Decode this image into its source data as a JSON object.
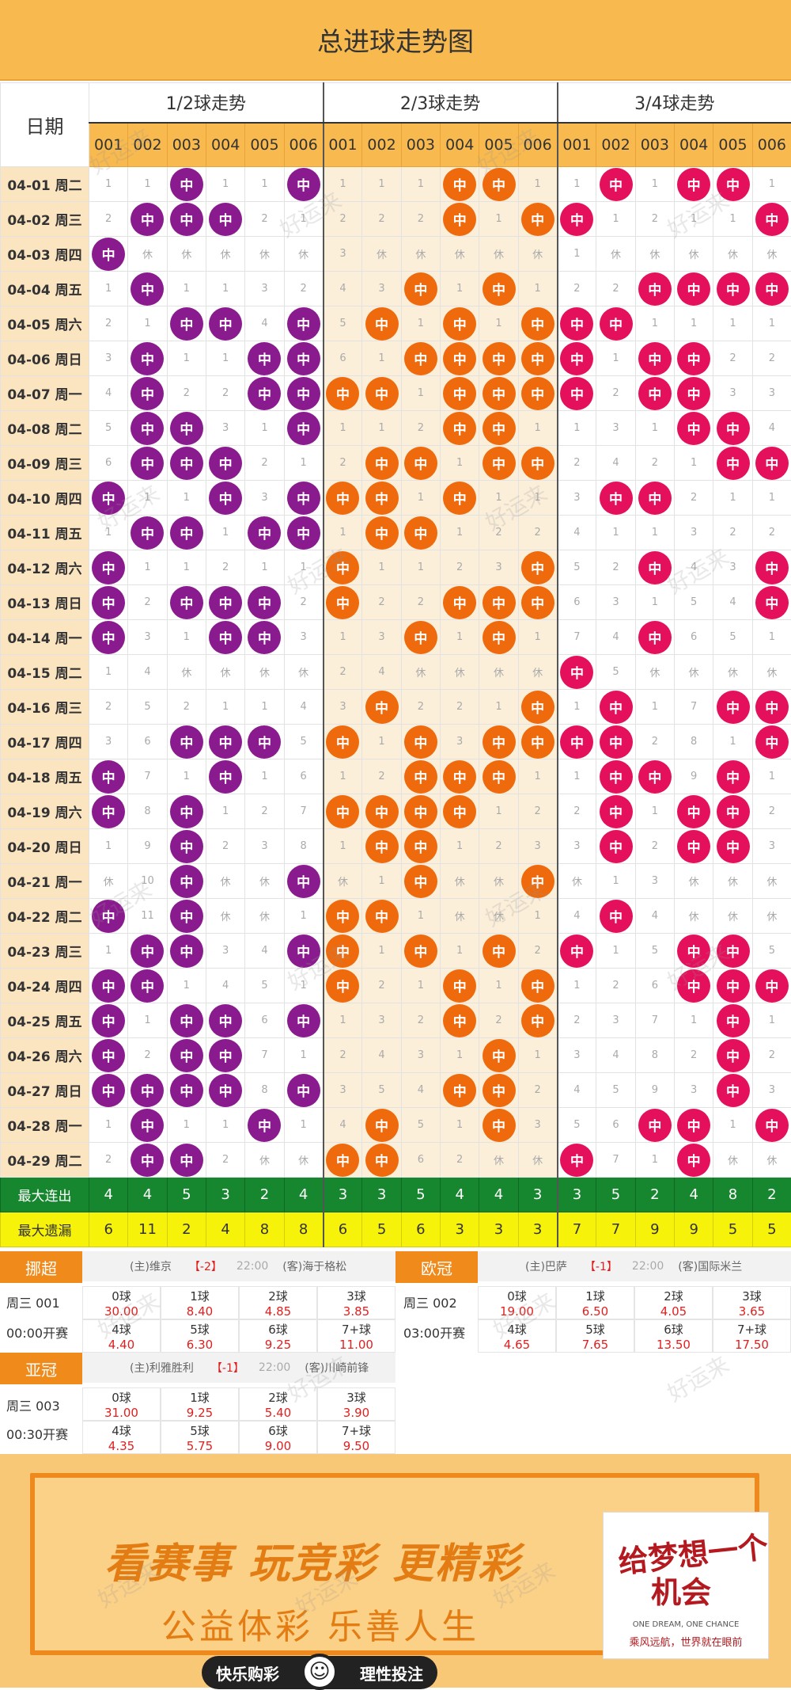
{
  "title": "总进球走势图",
  "grid": {
    "date_header": "日期",
    "groups": [
      "1/2球走势",
      "2/3球走势",
      "3/4球走势"
    ],
    "columns": [
      "001",
      "002",
      "003",
      "004",
      "005",
      "006",
      "001",
      "002",
      "003",
      "004",
      "005",
      "006",
      "001",
      "002",
      "003",
      "004",
      "005",
      "006"
    ],
    "rows": [
      {
        "date": "04-01 周二",
        "cells": [
          "1",
          "1",
          "中",
          "1",
          "1",
          "中",
          "1",
          "1",
          "1",
          "中",
          "中",
          "1",
          "1",
          "中",
          "1",
          "中",
          "中",
          "1"
        ]
      },
      {
        "date": "04-02 周三",
        "cells": [
          "2",
          "中",
          "中",
          "中",
          "2",
          "1",
          "2",
          "2",
          "2",
          "中",
          "1",
          "中",
          "中",
          "1",
          "2",
          "1",
          "1",
          "中"
        ]
      },
      {
        "date": "04-03 周四",
        "cells": [
          "中",
          "休",
          "休",
          "休",
          "休",
          "休",
          "3",
          "休",
          "休",
          "休",
          "休",
          "休",
          "1",
          "休",
          "休",
          "休",
          "休",
          "休"
        ]
      },
      {
        "date": "04-04 周五",
        "cells": [
          "1",
          "中",
          "1",
          "1",
          "3",
          "2",
          "4",
          "3",
          "中",
          "1",
          "中",
          "1",
          "2",
          "2",
          "中",
          "中",
          "中",
          "中"
        ]
      },
      {
        "date": "04-05 周六",
        "cells": [
          "2",
          "1",
          "中",
          "中",
          "4",
          "中",
          "5",
          "中",
          "1",
          "中",
          "1",
          "中",
          "中",
          "中",
          "1",
          "1",
          "1",
          "1"
        ]
      },
      {
        "date": "04-06 周日",
        "cells": [
          "3",
          "中",
          "1",
          "1",
          "中",
          "中",
          "6",
          "1",
          "中",
          "中",
          "中",
          "中",
          "中",
          "1",
          "中",
          "中",
          "2",
          "2"
        ]
      },
      {
        "date": "04-07 周一",
        "cells": [
          "4",
          "中",
          "2",
          "2",
          "中",
          "中",
          "中",
          "中",
          "1",
          "中",
          "中",
          "中",
          "中",
          "2",
          "中",
          "中",
          "3",
          "3"
        ]
      },
      {
        "date": "04-08 周二",
        "cells": [
          "5",
          "中",
          "中",
          "3",
          "1",
          "中",
          "1",
          "1",
          "2",
          "中",
          "中",
          "1",
          "1",
          "3",
          "1",
          "中",
          "中",
          "4"
        ]
      },
      {
        "date": "04-09 周三",
        "cells": [
          "6",
          "中",
          "中",
          "中",
          "2",
          "1",
          "2",
          "中",
          "中",
          "1",
          "中",
          "中",
          "2",
          "4",
          "2",
          "1",
          "中",
          "中"
        ]
      },
      {
        "date": "04-10 周四",
        "cells": [
          "中",
          "1",
          "1",
          "中",
          "3",
          "中",
          "中",
          "中",
          "1",
          "中",
          "1",
          "1",
          "3",
          "中",
          "中",
          "2",
          "1",
          "1"
        ]
      },
      {
        "date": "04-11 周五",
        "cells": [
          "1",
          "中",
          "中",
          "1",
          "中",
          "中",
          "1",
          "中",
          "中",
          "1",
          "2",
          "2",
          "4",
          "1",
          "1",
          "3",
          "2",
          "2"
        ]
      },
      {
        "date": "04-12 周六",
        "cells": [
          "中",
          "1",
          "1",
          "2",
          "1",
          "1",
          "中",
          "1",
          "1",
          "2",
          "3",
          "中",
          "5",
          "2",
          "中",
          "4",
          "3",
          "中"
        ]
      },
      {
        "date": "04-13 周日",
        "cells": [
          "中",
          "2",
          "中",
          "中",
          "中",
          "2",
          "中",
          "2",
          "2",
          "中",
          "中",
          "中",
          "6",
          "3",
          "1",
          "5",
          "4",
          "中"
        ]
      },
      {
        "date": "04-14 周一",
        "cells": [
          "中",
          "3",
          "1",
          "中",
          "中",
          "3",
          "1",
          "3",
          "中",
          "1",
          "中",
          "1",
          "7",
          "4",
          "中",
          "6",
          "5",
          "1"
        ]
      },
      {
        "date": "04-15 周二",
        "cells": [
          "1",
          "4",
          "休",
          "休",
          "休",
          "休",
          "2",
          "4",
          "休",
          "休",
          "休",
          "休",
          "中",
          "5",
          "休",
          "休",
          "休",
          "休"
        ]
      },
      {
        "date": "04-16 周三",
        "cells": [
          "2",
          "5",
          "2",
          "1",
          "1",
          "4",
          "3",
          "中",
          "2",
          "2",
          "1",
          "中",
          "1",
          "中",
          "1",
          "7",
          "中",
          "中"
        ]
      },
      {
        "date": "04-17 周四",
        "cells": [
          "3",
          "6",
          "中",
          "中",
          "中",
          "5",
          "中",
          "1",
          "中",
          "3",
          "中",
          "中",
          "中",
          "中",
          "2",
          "8",
          "1",
          "中"
        ]
      },
      {
        "date": "04-18 周五",
        "cells": [
          "中",
          "7",
          "1",
          "中",
          "1",
          "6",
          "1",
          "2",
          "中",
          "中",
          "中",
          "1",
          "1",
          "中",
          "中",
          "9",
          "中",
          "1"
        ]
      },
      {
        "date": "04-19 周六",
        "cells": [
          "中",
          "8",
          "中",
          "1",
          "2",
          "7",
          "中",
          "中",
          "中",
          "中",
          "1",
          "2",
          "2",
          "中",
          "1",
          "中",
          "中",
          "2"
        ]
      },
      {
        "date": "04-20 周日",
        "cells": [
          "1",
          "9",
          "中",
          "2",
          "3",
          "8",
          "1",
          "中",
          "中",
          "1",
          "2",
          "3",
          "3",
          "中",
          "2",
          "中",
          "中",
          "3"
        ]
      },
      {
        "date": "04-21 周一",
        "cells": [
          "休",
          "10",
          "中",
          "休",
          "休",
          "中",
          "休",
          "1",
          "中",
          "休",
          "休",
          "中",
          "休",
          "1",
          "3",
          "休",
          "休",
          "休"
        ]
      },
      {
        "date": "04-22 周二",
        "cells": [
          "中",
          "11",
          "中",
          "休",
          "休",
          "1",
          "中",
          "中",
          "1",
          "休",
          "休",
          "1",
          "4",
          "中",
          "4",
          "休",
          "休",
          "休"
        ]
      },
      {
        "date": "04-23 周三",
        "cells": [
          "1",
          "中",
          "中",
          "3",
          "4",
          "中",
          "中",
          "1",
          "中",
          "1",
          "中",
          "2",
          "中",
          "1",
          "5",
          "中",
          "中",
          "5"
        ]
      },
      {
        "date": "04-24 周四",
        "cells": [
          "中",
          "中",
          "1",
          "4",
          "5",
          "1",
          "中",
          "2",
          "1",
          "中",
          "1",
          "中",
          "1",
          "2",
          "6",
          "中",
          "中",
          "中"
        ]
      },
      {
        "date": "04-25 周五",
        "cells": [
          "中",
          "1",
          "中",
          "中",
          "6",
          "中",
          "1",
          "3",
          "2",
          "中",
          "2",
          "中",
          "2",
          "3",
          "7",
          "1",
          "中",
          "1"
        ]
      },
      {
        "date": "04-26 周六",
        "cells": [
          "中",
          "2",
          "中",
          "中",
          "7",
          "1",
          "2",
          "4",
          "3",
          "1",
          "中",
          "1",
          "3",
          "4",
          "8",
          "2",
          "中",
          "2"
        ]
      },
      {
        "date": "04-27 周日",
        "cells": [
          "中",
          "中",
          "中",
          "中",
          "8",
          "中",
          "3",
          "5",
          "4",
          "中",
          "中",
          "2",
          "4",
          "5",
          "9",
          "3",
          "中",
          "3"
        ]
      },
      {
        "date": "04-28 周一",
        "cells": [
          "1",
          "中",
          "1",
          "1",
          "中",
          "1",
          "4",
          "中",
          "5",
          "1",
          "中",
          "3",
          "5",
          "6",
          "中",
          "中",
          "1",
          "中"
        ]
      },
      {
        "date": "04-29 周二",
        "cells": [
          "2",
          "中",
          "中",
          "2",
          "休",
          "休",
          "中",
          "中",
          "6",
          "2",
          "休",
          "休",
          "中",
          "7",
          "1",
          "中",
          "休",
          "休"
        ]
      }
    ],
    "max_streak_label": "最大连出",
    "max_streak": [
      "4",
      "4",
      "5",
      "3",
      "2",
      "4",
      "3",
      "3",
      "5",
      "4",
      "4",
      "3",
      "3",
      "5",
      "2",
      "4",
      "8",
      "2"
    ],
    "max_miss_label": "最大遗漏",
    "max_miss": [
      "6",
      "11",
      "2",
      "4",
      "8",
      "8",
      "6",
      "5",
      "6",
      "3",
      "3",
      "3",
      "7",
      "7",
      "9",
      "9",
      "5",
      "5"
    ]
  },
  "odds": {
    "ball_label": "中",
    "blocks": [
      {
        "league": "挪超",
        "day": "周三 001",
        "time": "00:00开赛",
        "home": "(主)维京",
        "handicap": "【-2】",
        "kickoff": "22:00",
        "away": "(客)海于格松",
        "cells": [
          {
            "label": "0球",
            "value": "30.00"
          },
          {
            "label": "1球",
            "value": "8.40"
          },
          {
            "label": "2球",
            "value": "4.85"
          },
          {
            "label": "3球",
            "value": "3.85"
          },
          {
            "label": "4球",
            "value": "4.40"
          },
          {
            "label": "5球",
            "value": "6.30"
          },
          {
            "label": "6球",
            "value": "9.25"
          },
          {
            "label": "7+球",
            "value": "11.00"
          }
        ]
      },
      {
        "league": "欧冠",
        "day": "周三 002",
        "time": "03:00开赛",
        "home": "(主)巴萨",
        "handicap": "【-1】",
        "kickoff": "22:00",
        "away": "(客)国际米兰",
        "cells": [
          {
            "label": "0球",
            "value": "19.00"
          },
          {
            "label": "1球",
            "value": "6.50"
          },
          {
            "label": "2球",
            "value": "4.05"
          },
          {
            "label": "3球",
            "value": "3.65"
          },
          {
            "label": "4球",
            "value": "4.65"
          },
          {
            "label": "5球",
            "value": "7.65"
          },
          {
            "label": "6球",
            "value": "13.50"
          },
          {
            "label": "7+球",
            "value": "17.50"
          }
        ]
      },
      {
        "league": "亚冠",
        "day": "周三 003",
        "time": "00:30开赛",
        "home": "(主)利雅胜利",
        "handicap": "【-1】",
        "kickoff": "22:00",
        "away": "(客)川崎前锋",
        "cells": [
          {
            "label": "0球",
            "value": "31.00"
          },
          {
            "label": "1球",
            "value": "9.25"
          },
          {
            "label": "2球",
            "value": "5.40"
          },
          {
            "label": "3球",
            "value": "3.90"
          },
          {
            "label": "4球",
            "value": "4.35"
          },
          {
            "label": "5球",
            "value": "5.75"
          },
          {
            "label": "6球",
            "value": "9.00"
          },
          {
            "label": "7+球",
            "value": "9.50"
          }
        ]
      }
    ]
  },
  "banner": {
    "slogan_main": "看赛事 玩竞彩 更精彩",
    "slogan_sub": "公益体彩 乐善人生",
    "dream_line1": "给梦想一个",
    "dream_line2": "机会",
    "dream_en": "ONE DREAM, ONE CHANCE",
    "dream_cn": "乘风远航，世界就在眼前",
    "pill_left": "快乐购彩",
    "pill_right": "理性投注",
    "watermark": "好运来"
  },
  "colors": {
    "header_bg": "#f8b94f",
    "ball_group1": "#8a1b8f",
    "ball_group2": "#ee6a0c",
    "ball_group3": "#e4105c",
    "streak_bg": "#17872f",
    "miss_bg": "#f7f20a",
    "odds_accent": "#f08a1a"
  }
}
